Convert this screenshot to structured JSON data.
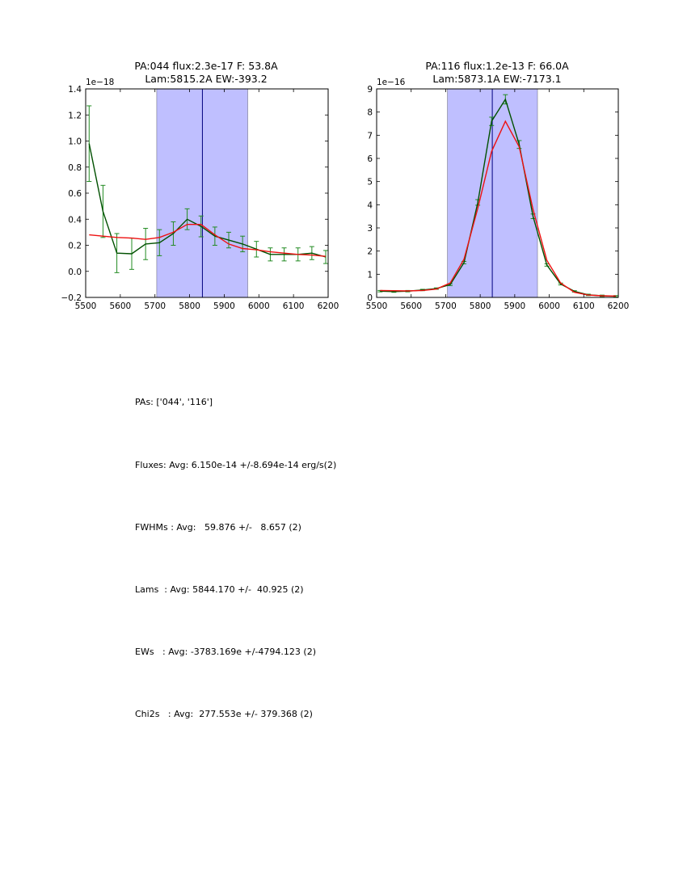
{
  "chart_data": [
    {
      "type": "line",
      "title_line1": "PA:044 flux:2.3e-17 F: 53.8A",
      "title_line2": "Lam:5815.2A EW:-393.2",
      "offset_text": "1e−18",
      "xlim": [
        5500,
        6200
      ],
      "ylim": [
        -0.2,
        1.4
      ],
      "xticks": [
        5500,
        5600,
        5700,
        5800,
        5900,
        6000,
        6100,
        6200
      ],
      "xtick_labels": [
        "5500",
        "5600",
        "5700",
        "5800",
        "5900",
        "6000",
        "6100",
        "6200"
      ],
      "yticks": [
        -0.2,
        0.0,
        0.2,
        0.4,
        0.6,
        0.8,
        1.0,
        1.2,
        1.4
      ],
      "ytick_labels": [
        "−0.2",
        "0.0",
        "0.2",
        "0.4",
        "0.6",
        "0.8",
        "1.0",
        "1.2",
        "1.4"
      ],
      "band": [
        5705,
        5968
      ],
      "vline": 5837,
      "colors": {
        "data": "#005000",
        "errorbar": "#228B22",
        "fit": "#ee1111",
        "band": "#8080ff",
        "vline": "#000080"
      },
      "series": [
        {
          "name": "data",
          "x": [
            5510,
            5550,
            5590,
            5633,
            5673,
            5713,
            5753,
            5793,
            5833,
            5873,
            5913,
            5953,
            5993,
            6033,
            6073,
            6113,
            6153,
            6193
          ],
          "y": [
            0.98,
            0.46,
            0.14,
            0.135,
            0.21,
            0.22,
            0.29,
            0.4,
            0.345,
            0.27,
            0.24,
            0.21,
            0.17,
            0.13,
            0.13,
            0.13,
            0.14,
            0.11
          ],
          "yerr": [
            0.29,
            0.2,
            0.15,
            0.12,
            0.12,
            0.1,
            0.09,
            0.08,
            0.08,
            0.07,
            0.06,
            0.06,
            0.06,
            0.05,
            0.05,
            0.05,
            0.05,
            0.05
          ]
        },
        {
          "name": "fit",
          "x": [
            5510,
            5550,
            5590,
            5633,
            5673,
            5713,
            5753,
            5793,
            5833,
            5873,
            5913,
            5953,
            5993,
            6033,
            6073,
            6113,
            6153,
            6193
          ],
          "y": [
            0.28,
            0.27,
            0.26,
            0.255,
            0.245,
            0.26,
            0.3,
            0.36,
            0.36,
            0.28,
            0.21,
            0.175,
            0.165,
            0.15,
            0.14,
            0.13,
            0.125,
            0.115
          ]
        }
      ]
    },
    {
      "type": "line",
      "title_line1": "PA:116 flux:1.2e-13 F: 66.0A",
      "title_line2": "Lam:5873.1A EW:-7173.1",
      "offset_text": "1e−16",
      "xlim": [
        5500,
        6200
      ],
      "ylim": [
        0,
        9
      ],
      "xticks": [
        5500,
        5600,
        5700,
        5800,
        5900,
        6000,
        6100,
        6200
      ],
      "xtick_labels": [
        "5500",
        "5600",
        "5700",
        "5800",
        "5900",
        "6000",
        "6100",
        "6200"
      ],
      "yticks": [
        0,
        1,
        2,
        3,
        4,
        5,
        6,
        7,
        8,
        9
      ],
      "ytick_labels": [
        "0",
        "1",
        "2",
        "3",
        "4",
        "5",
        "6",
        "7",
        "8",
        "9"
      ],
      "band": [
        5705,
        5966
      ],
      "vline": 5835,
      "colors": {
        "data": "#005000",
        "errorbar": "#228B22",
        "fit": "#ee1111",
        "band": "#8080ff",
        "vline": "#000080"
      },
      "series": [
        {
          "name": "data",
          "x": [
            5510,
            5550,
            5590,
            5633,
            5673,
            5713,
            5753,
            5793,
            5833,
            5873,
            5913,
            5953,
            5993,
            6033,
            6073,
            6113,
            6153,
            6193
          ],
          "y": [
            0.27,
            0.25,
            0.27,
            0.32,
            0.38,
            0.55,
            1.5,
            4.1,
            7.6,
            8.55,
            6.6,
            3.5,
            1.4,
            0.58,
            0.26,
            0.11,
            0.07,
            0.05
          ],
          "yerr": [
            0.03,
            0.03,
            0.03,
            0.03,
            0.03,
            0.04,
            0.05,
            0.12,
            0.18,
            0.2,
            0.17,
            0.1,
            0.05,
            0.04,
            0.03,
            0.03,
            0.03,
            0.03
          ]
        },
        {
          "name": "fit",
          "x": [
            5510,
            5550,
            5590,
            5633,
            5673,
            5713,
            5753,
            5793,
            5833,
            5873,
            5913,
            5953,
            5993,
            6033,
            6073,
            6113,
            6153,
            6193
          ],
          "y": [
            0.3,
            0.29,
            0.28,
            0.3,
            0.36,
            0.62,
            1.65,
            3.85,
            6.3,
            7.6,
            6.5,
            3.8,
            1.6,
            0.62,
            0.22,
            0.1,
            0.07,
            0.06
          ]
        }
      ]
    }
  ],
  "stats": {
    "pas": "PAs: ['044', '116']",
    "fluxes": "Fluxes: Avg: 6.150e-14 +/-8.694e-14 erg/s(2)",
    "fwhms": "FWHMs : Avg:   59.876 +/-   8.657 (2)",
    "lams": "Lams  : Avg: 5844.170 +/-  40.925 (2)",
    "ews": "EWs   : Avg: -3783.169e +/-4794.123 (2)",
    "chi2s": "Chi2s   : Avg:  277.553e +/- 379.368 (2)"
  }
}
